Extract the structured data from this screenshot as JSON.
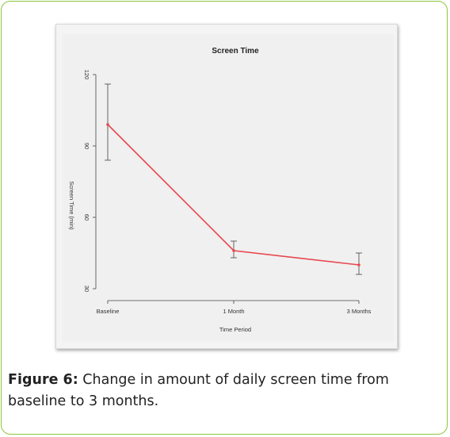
{
  "caption": {
    "label": "Figure 6:",
    "text": " Change in amount of daily screen time from baseline to 3 months."
  },
  "chart_data": {
    "type": "line",
    "title": "Screen Time",
    "xlabel": "Time Period",
    "ylabel": "Screen Time (min)",
    "categories": [
      "Baseline",
      "1 Month",
      "3 Months"
    ],
    "yticks": [
      "30",
      "60",
      "90",
      "120"
    ],
    "ylim": [
      30,
      120
    ],
    "series": [
      {
        "values": [
          99,
          46,
          40
        ],
        "error_low": [
          84,
          43,
          36
        ],
        "error_high": [
          116,
          50,
          45
        ],
        "color": "#e8474f"
      }
    ],
    "grid": false,
    "legend": "none"
  }
}
